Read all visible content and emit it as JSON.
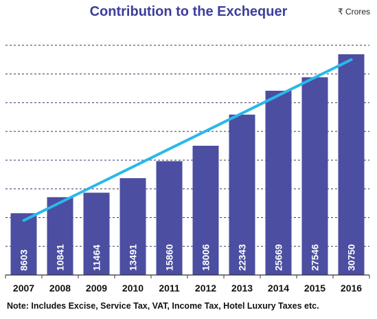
{
  "header": {
    "title": "Contribution to the Exchequer",
    "unit": "₹ Crores"
  },
  "footer": {
    "note": "Note: Includes Excise, Service Tax, VAT, Income Tax, Hotel Luxury Taxes etc."
  },
  "chart_data": {
    "type": "bar",
    "title": "Contribution to the Exchequer",
    "unit": "₹ Crores",
    "categories": [
      "2007",
      "2008",
      "2009",
      "2010",
      "2011",
      "2012",
      "2013",
      "2014",
      "2015",
      "2016"
    ],
    "values": [
      8603,
      10841,
      11464,
      13491,
      15860,
      18006,
      22343,
      25669,
      27546,
      30750
    ],
    "trendline": {
      "from_value": 7600,
      "to_value": 30000
    },
    "ylim": [
      0,
      34000
    ],
    "grid": true,
    "data_labels": "inside-bar-vertical",
    "colors": {
      "bar": "#4b4ea1",
      "trend": "#2ab8ea",
      "grid": "#333366",
      "title": "#3d3d9c"
    }
  }
}
